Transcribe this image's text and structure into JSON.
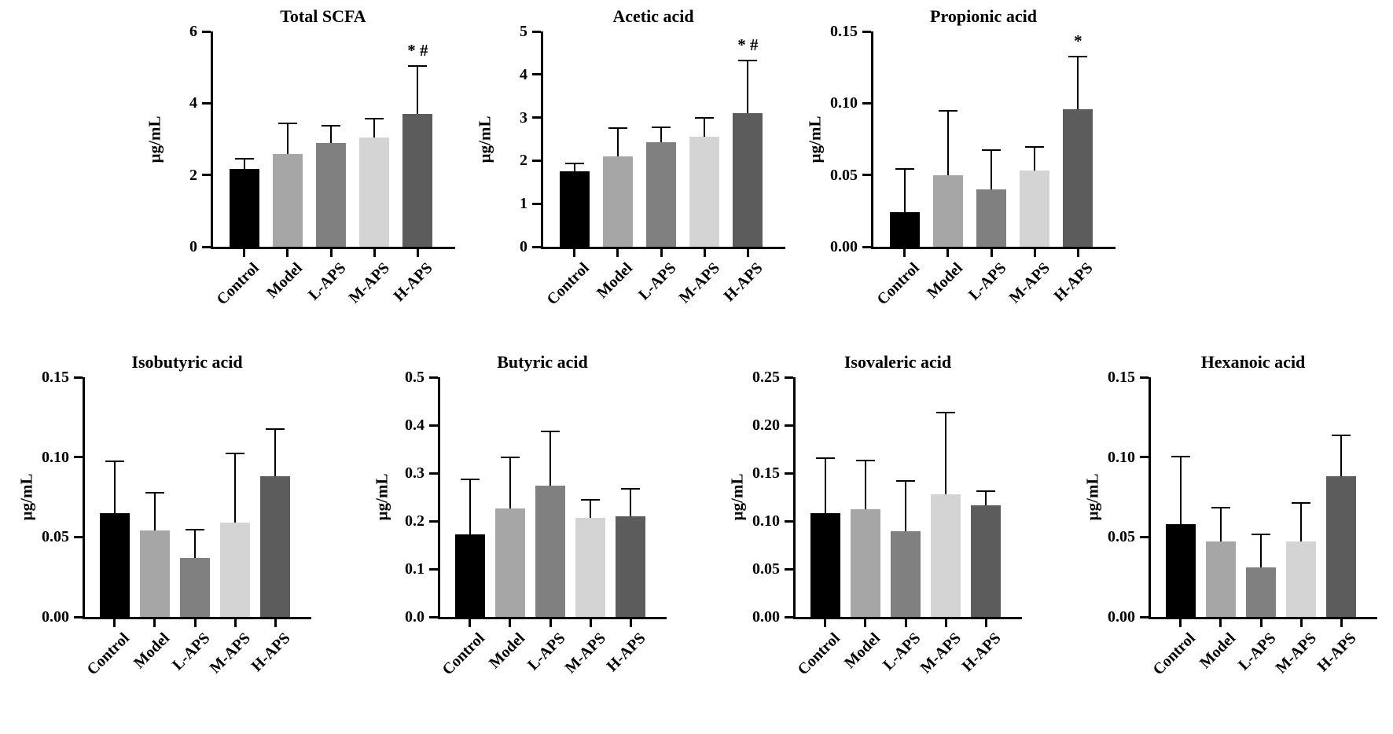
{
  "figure": {
    "background": "#ffffff",
    "axis_color": "#000000",
    "bar_colors": [
      "#000000",
      "#a6a6a6",
      "#808080",
      "#d4d4d4",
      "#5c5c5c"
    ],
    "categories": [
      "Control",
      "Model",
      "L-APS",
      "M-APS",
      "H-APS"
    ]
  },
  "chart_data": [
    {
      "type": "bar",
      "title": "Total SCFA",
      "ylabel": "µg/mL",
      "categories": [
        "Control",
        "Model",
        "L-APS",
        "M-APS",
        "H-APS"
      ],
      "values": [
        2.17,
        2.58,
        2.9,
        3.05,
        3.7
      ],
      "error_top": [
        2.47,
        3.45,
        3.4,
        3.6,
        5.05
      ],
      "annotations": [
        "",
        "",
        "",
        "",
        "* #"
      ],
      "ylim": [
        0,
        6
      ],
      "yticks": [
        0,
        2,
        4,
        6
      ],
      "ytick_labels": [
        "0",
        "2",
        "4",
        "6"
      ]
    },
    {
      "type": "bar",
      "title": "Acetic acid",
      "ylabel": "µg/mL",
      "categories": [
        "Control",
        "Model",
        "L-APS",
        "M-APS",
        "H-APS"
      ],
      "values": [
        1.75,
        2.1,
        2.43,
        2.56,
        3.1
      ],
      "error_top": [
        1.95,
        2.78,
        2.8,
        3.02,
        4.35
      ],
      "annotations": [
        "",
        "",
        "",
        "",
        "* #"
      ],
      "ylim": [
        0,
        5
      ],
      "yticks": [
        0,
        1,
        2,
        3,
        4,
        5
      ],
      "ytick_labels": [
        "0",
        "1",
        "2",
        "3",
        "4",
        "5"
      ]
    },
    {
      "type": "bar",
      "title": "Propionic acid",
      "ylabel": "µg/mL",
      "categories": [
        "Control",
        "Model",
        "L-APS",
        "M-APS",
        "H-APS"
      ],
      "values": [
        0.024,
        0.05,
        0.04,
        0.053,
        0.096
      ],
      "error_top": [
        0.055,
        0.095,
        0.068,
        0.07,
        0.133
      ],
      "annotations": [
        "",
        "",
        "",
        "",
        "*"
      ],
      "ylim": [
        0,
        0.15
      ],
      "yticks": [
        0,
        0.05,
        0.1,
        0.15
      ],
      "ytick_labels": [
        "0.00",
        "0.05",
        "0.10",
        "0.15"
      ]
    },
    {
      "type": "bar",
      "title": "Isobutyric acid",
      "ylabel": "µg/mL",
      "categories": [
        "Control",
        "Model",
        "L-APS",
        "M-APS",
        "H-APS"
      ],
      "values": [
        0.065,
        0.054,
        0.037,
        0.059,
        0.088
      ],
      "error_top": [
        0.098,
        0.078,
        0.055,
        0.103,
        0.118
      ],
      "annotations": [
        "",
        "",
        "",
        "",
        ""
      ],
      "ylim": [
        0,
        0.15
      ],
      "yticks": [
        0,
        0.05,
        0.1,
        0.15
      ],
      "ytick_labels": [
        "0.00",
        "0.05",
        "0.10",
        "0.15"
      ]
    },
    {
      "type": "bar",
      "title": "Butyric acid",
      "ylabel": "µg/mL",
      "categories": [
        "Control",
        "Model",
        "L-APS",
        "M-APS",
        "H-APS"
      ],
      "values": [
        0.172,
        0.227,
        0.273,
        0.207,
        0.21
      ],
      "error_top": [
        0.288,
        0.334,
        0.388,
        0.246,
        0.269
      ],
      "annotations": [
        "",
        "",
        "",
        "",
        ""
      ],
      "ylim": [
        0,
        0.5
      ],
      "yticks": [
        0,
        0.1,
        0.2,
        0.3,
        0.4,
        0.5
      ],
      "ytick_labels": [
        "0.0",
        "0.1",
        "0.2",
        "0.3",
        "0.4",
        "0.5"
      ]
    },
    {
      "type": "bar",
      "title": "Isovaleric acid",
      "ylabel": "µg/mL",
      "categories": [
        "Control",
        "Model",
        "L-APS",
        "M-APS",
        "H-APS"
      ],
      "values": [
        0.108,
        0.112,
        0.089,
        0.128,
        0.116
      ],
      "error_top": [
        0.166,
        0.164,
        0.143,
        0.214,
        0.132
      ],
      "annotations": [
        "",
        "",
        "",
        "",
        ""
      ],
      "ylim": [
        0,
        0.25
      ],
      "yticks": [
        0,
        0.05,
        0.1,
        0.15,
        0.2,
        0.25
      ],
      "ytick_labels": [
        "0.00",
        "0.05",
        "0.10",
        "0.15",
        "0.20",
        "0.25"
      ]
    },
    {
      "type": "bar",
      "title": "Hexanoic acid",
      "ylabel": "µg/mL",
      "categories": [
        "Control",
        "Model",
        "L-APS",
        "M-APS",
        "H-APS"
      ],
      "values": [
        0.058,
        0.047,
        0.031,
        0.047,
        0.088
      ],
      "error_top": [
        0.101,
        0.069,
        0.052,
        0.072,
        0.114
      ],
      "annotations": [
        "",
        "",
        "",
        "",
        ""
      ],
      "ylim": [
        0,
        0.15
      ],
      "yticks": [
        0,
        0.05,
        0.1,
        0.15
      ],
      "ytick_labels": [
        "0.00",
        "0.05",
        "0.10",
        "0.15"
      ]
    }
  ]
}
